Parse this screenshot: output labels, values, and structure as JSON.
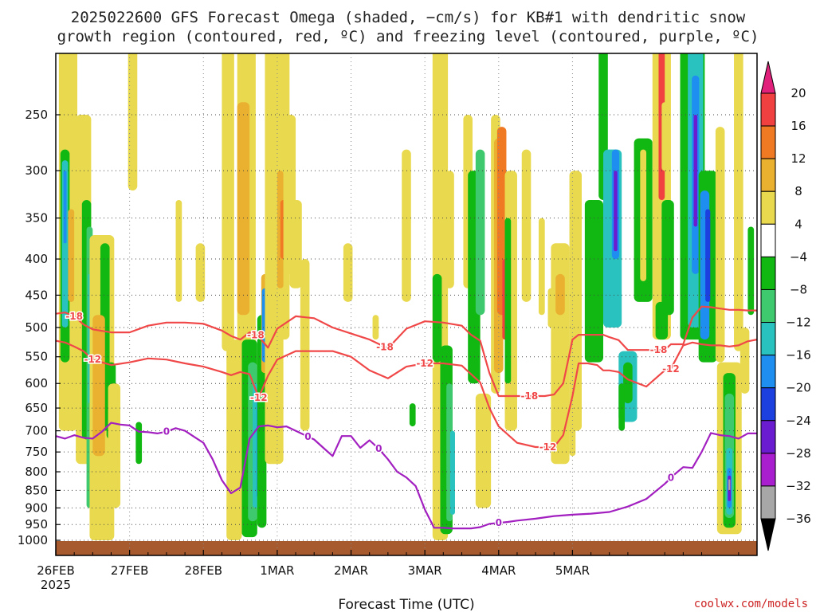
{
  "title_line1": "2025022600 GFS Forecast Omega (shaded, −cm/s) for KB#1 with dendritic snow",
  "title_line2": "growth region (contoured, red, ºC) and freezing level (contoured, purple, ºC)",
  "site_label": "coolwx.com/models",
  "chart_data": {
    "type": "heatmap",
    "title": "2025022600 GFS Forecast Omega (shaded, −cm/s) for KB#1 with dendritic snow growth region (contoured, red, ºC) and freezing level (contoured, purple, ºC)",
    "xlabel": "Forecast Time (UTC)",
    "ylabel": "",
    "x_ticks": [
      "26FEB",
      "27FEB",
      "28FEB",
      "1MAR",
      "2MAR",
      "3MAR",
      "4MAR",
      "5MAR"
    ],
    "x_year_label": "2025",
    "xlim_hours": [
      0,
      228
    ],
    "y_scale": "log-pressure (inverted)",
    "y_ticks": [
      250,
      300,
      350,
      400,
      450,
      500,
      550,
      600,
      650,
      700,
      750,
      800,
      850,
      900,
      950,
      1000
    ],
    "ylim": [
      200,
      1025
    ],
    "grid": true,
    "colorbar": {
      "levels": [
        20,
        16,
        12,
        8,
        4,
        -4,
        -8,
        -12,
        -16,
        -20,
        -24,
        -28,
        -32,
        -36
      ],
      "colors": [
        "#f04040",
        "#f07a24",
        "#eab030",
        "#e9d94e",
        "#ffffff",
        "#12b812",
        "#3ec96e",
        "#2ac2be",
        "#1e8ef0",
        "#1c3fe0",
        "#6a1dd0",
        "#a91fd0",
        "#a7a7a7"
      ],
      "top_arrow_color": "#e0207a",
      "bottom_arrow_color": "#000000"
    },
    "series": [
      {
        "name": "-18",
        "color": "#f04848",
        "x": [
          0,
          3,
          6,
          9,
          12,
          18,
          24,
          30,
          36,
          42,
          48,
          54,
          57,
          60,
          63,
          66,
          69,
          72,
          78,
          84,
          90,
          96,
          102,
          108,
          114,
          120,
          126,
          132,
          135,
          138,
          141,
          144,
          150,
          156,
          159,
          162,
          165,
          168,
          170,
          173,
          176,
          178,
          180,
          183,
          186,
          192,
          198,
          200,
          204,
          207,
          210,
          213,
          216,
          219,
          222,
          225,
          228
        ],
        "p": [
          478,
          476,
          482,
          495,
          503,
          508,
          508,
          497,
          492,
          492,
          494,
          505,
          514,
          520,
          508,
          515,
          534,
          502,
          482,
          485,
          500,
          510,
          520,
          535,
          502,
          490,
          492,
          497,
          512,
          522,
          580,
          625,
          625,
          625,
          625,
          622,
          600,
          520,
          512,
          512,
          512,
          512,
          516,
          521,
          538,
          538,
          538,
          528,
          528,
          484,
          467,
          468,
          470,
          472,
          472,
          473,
          473
        ]
      },
      {
        "name": "-12",
        "color": "#f04848",
        "x": [
          0,
          3,
          6,
          9,
          12,
          18,
          24,
          30,
          36,
          42,
          48,
          54,
          57,
          60,
          63,
          66,
          69,
          72,
          78,
          84,
          90,
          96,
          102,
          108,
          114,
          120,
          126,
          132,
          135,
          138,
          141,
          144,
          150,
          156,
          159,
          162,
          165,
          168,
          170,
          173,
          176,
          178,
          180,
          183,
          186,
          192,
          198,
          200,
          204,
          207,
          210,
          213,
          216,
          219,
          222,
          225,
          228
        ],
        "p": [
          522,
          525,
          532,
          540,
          555,
          565,
          560,
          553,
          555,
          562,
          568,
          578,
          584,
          578,
          582,
          628,
          585,
          555,
          540,
          540,
          540,
          550,
          575,
          590,
          568,
          562,
          562,
          566,
          582,
          598,
          650,
          690,
          728,
          738,
          738,
          738,
          710,
          625,
          562,
          562,
          565,
          575,
          575,
          578,
          592,
          606,
          575,
          572,
          530,
          525,
          528,
          530,
          530,
          532,
          530,
          523,
          520
        ]
      },
      {
        "name": "0",
        "color": "#a21fc0",
        "x": [
          0,
          3,
          6,
          9,
          12,
          15,
          18,
          21,
          24,
          27,
          30,
          33,
          36,
          39,
          42,
          45,
          48,
          51,
          54,
          57,
          60,
          63,
          66,
          69,
          72,
          75,
          78,
          81,
          84,
          87,
          90,
          93,
          96,
          99,
          102,
          105,
          108,
          111,
          114,
          117,
          120,
          123,
          126,
          129,
          132,
          135,
          138,
          141,
          144,
          147,
          150,
          156,
          162,
          168,
          174,
          180,
          186,
          192,
          198,
          201,
          204,
          207,
          210,
          213,
          216,
          219,
          222,
          225,
          228
        ],
        "p": [
          712,
          718,
          710,
          716,
          718,
          702,
          682,
          686,
          688,
          702,
          703,
          706,
          702,
          694,
          700,
          714,
          728,
          768,
          822,
          858,
          842,
          718,
          690,
          688,
          692,
          690,
          700,
          710,
          720,
          740,
          760,
          712,
          712,
          740,
          722,
          742,
          768,
          800,
          815,
          838,
          905,
          960,
          960,
          962,
          962,
          962,
          958,
          948,
          945,
          942,
          938,
          932,
          924,
          920,
          917,
          912,
          896,
          874,
          832,
          808,
          788,
          790,
          750,
          705,
          710,
          712,
          718,
          706,
          706
        ]
      }
    ]
  }
}
